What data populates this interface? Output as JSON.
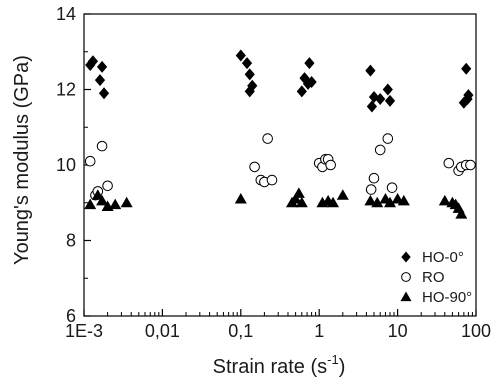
{
  "chart_data": {
    "type": "scatter",
    "xscale": "log",
    "xlim": [
      0.001,
      100
    ],
    "ylim": [
      6,
      14
    ],
    "xlabel": "Strain rate (s",
    "xlabel_sup": "-1",
    "xlabel_tail": ")",
    "ylabel": "Young's modulus (GPa)",
    "grid": false,
    "legend_position": "bottom-right",
    "x_ticks": [
      {
        "value": 0.001,
        "label": "1E-3"
      },
      {
        "value": 0.01,
        "label": "0,01"
      },
      {
        "value": 0.1,
        "label": "0,1"
      },
      {
        "value": 1,
        "label": "1"
      },
      {
        "value": 10,
        "label": "10"
      },
      {
        "value": 100,
        "label": "100"
      }
    ],
    "y_ticks": [
      {
        "value": 6,
        "label": "6"
      },
      {
        "value": 8,
        "label": "8"
      },
      {
        "value": 10,
        "label": "10"
      },
      {
        "value": 12,
        "label": "12"
      },
      {
        "value": 14,
        "label": "14"
      }
    ],
    "series": [
      {
        "name": "HO-0°",
        "marker": "diamond",
        "color": "#000000",
        "points": [
          [
            0.0012,
            12.65
          ],
          [
            0.0013,
            12.75
          ],
          [
            0.0016,
            12.25
          ],
          [
            0.0017,
            12.6
          ],
          [
            0.0018,
            11.9
          ],
          [
            0.1,
            12.9
          ],
          [
            0.12,
            12.7
          ],
          [
            0.13,
            12.4
          ],
          [
            0.13,
            11.95
          ],
          [
            0.14,
            12.1
          ],
          [
            0.6,
            11.95
          ],
          [
            0.65,
            12.3
          ],
          [
            0.72,
            12.15
          ],
          [
            0.75,
            12.7
          ],
          [
            0.8,
            12.2
          ],
          [
            4.5,
            12.5
          ],
          [
            4.7,
            11.55
          ],
          [
            5,
            11.8
          ],
          [
            6,
            11.75
          ],
          [
            7.5,
            12.0
          ],
          [
            8,
            11.7
          ],
          [
            70,
            11.65
          ],
          [
            75,
            12.55
          ],
          [
            78,
            11.75
          ],
          [
            80,
            11.85
          ]
        ]
      },
      {
        "name": "RO",
        "marker": "circle-open",
        "color": "#000000",
        "points": [
          [
            0.0012,
            10.1
          ],
          [
            0.0014,
            9.2
          ],
          [
            0.0015,
            9.3
          ],
          [
            0.0017,
            10.5
          ],
          [
            0.002,
            9.45
          ],
          [
            0.15,
            9.95
          ],
          [
            0.18,
            9.6
          ],
          [
            0.2,
            9.55
          ],
          [
            0.22,
            10.7
          ],
          [
            0.25,
            9.6
          ],
          [
            1,
            10.05
          ],
          [
            1.1,
            9.95
          ],
          [
            1.2,
            10.15
          ],
          [
            1.3,
            10.15
          ],
          [
            1.4,
            10.0
          ],
          [
            4.6,
            9.35
          ],
          [
            5,
            9.65
          ],
          [
            6,
            10.4
          ],
          [
            7.5,
            10.7
          ],
          [
            8.5,
            9.4
          ],
          [
            45,
            10.05
          ],
          [
            60,
            9.85
          ],
          [
            65,
            9.95
          ],
          [
            75,
            10.0
          ],
          [
            85,
            10.0
          ]
        ]
      },
      {
        "name": "HO-90°",
        "marker": "triangle",
        "color": "#000000",
        "points": [
          [
            0.0012,
            8.95
          ],
          [
            0.0015,
            9.2
          ],
          [
            0.0017,
            9.05
          ],
          [
            0.002,
            8.9
          ],
          [
            0.0025,
            8.95
          ],
          [
            0.0035,
            9.0
          ],
          [
            0.1,
            9.1
          ],
          [
            0.45,
            9.0
          ],
          [
            0.5,
            9.1
          ],
          [
            0.55,
            9.25
          ],
          [
            0.6,
            9.0
          ],
          [
            1.1,
            9.0
          ],
          [
            1.3,
            9.05
          ],
          [
            1.5,
            9.0
          ],
          [
            2,
            9.2
          ],
          [
            4.5,
            9.05
          ],
          [
            5.5,
            9.0
          ],
          [
            7,
            9.1
          ],
          [
            8,
            9.0
          ],
          [
            10,
            9.1
          ],
          [
            12,
            9.05
          ],
          [
            40,
            9.05
          ],
          [
            50,
            9.0
          ],
          [
            55,
            8.95
          ],
          [
            60,
            8.85
          ],
          [
            65,
            8.7
          ]
        ]
      }
    ]
  }
}
